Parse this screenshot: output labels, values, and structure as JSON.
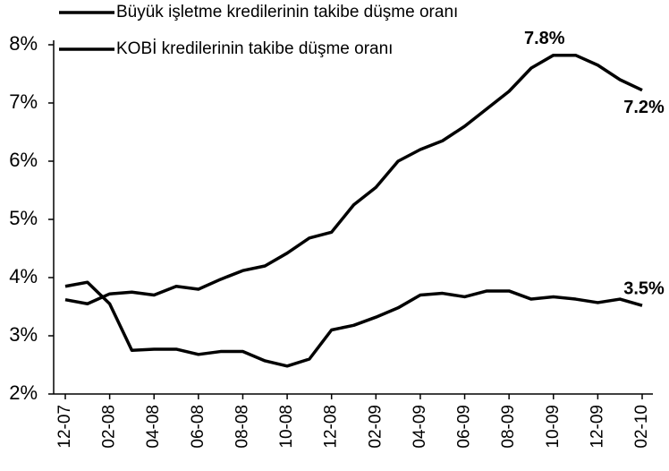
{
  "chart_data": {
    "type": "line",
    "categories": [
      "12-07",
      null,
      "02-08",
      null,
      "04-08",
      null,
      "06-08",
      null,
      "08-08",
      null,
      "10-08",
      null,
      "12-08",
      null,
      "02-09",
      null,
      "04-09",
      null,
      "06-09",
      null,
      "08-09",
      null,
      "10-09",
      null,
      "12-09",
      null,
      "02-10"
    ],
    "series": [
      {
        "name": "Büyük işletme kredilerinin takibe düşme oranı",
        "color": "#000000",
        "values": [
          3.85,
          3.92,
          3.55,
          2.75,
          2.77,
          2.77,
          2.68,
          2.73,
          2.73,
          2.57,
          2.48,
          2.6,
          3.1,
          3.18,
          3.32,
          3.48,
          3.7,
          3.73,
          3.67,
          3.77,
          3.77,
          3.63,
          3.67,
          3.63,
          3.57,
          3.63,
          3.52
        ],
        "value_labels": [
          null,
          null,
          null,
          null,
          null,
          null,
          null,
          null,
          null,
          null,
          null,
          null,
          null,
          null,
          null,
          null,
          null,
          null,
          null,
          null,
          null,
          null,
          null,
          null,
          null,
          null,
          "3.5%"
        ]
      },
      {
        "name": "KOBİ kredilerinin takibe düşme oranı",
        "color": "#000000",
        "values": [
          3.62,
          3.55,
          3.72,
          3.75,
          3.7,
          3.85,
          3.8,
          3.97,
          4.12,
          4.2,
          4.42,
          4.68,
          4.78,
          5.25,
          5.55,
          6.0,
          6.2,
          6.35,
          6.6,
          6.9,
          7.2,
          7.6,
          7.82,
          7.82,
          7.65,
          7.4,
          7.22
        ],
        "value_labels": [
          null,
          null,
          null,
          null,
          null,
          null,
          null,
          null,
          null,
          null,
          null,
          null,
          null,
          null,
          null,
          null,
          null,
          null,
          null,
          null,
          null,
          null,
          "7.8%",
          null,
          null,
          null,
          "7.2%"
        ]
      }
    ],
    "ylim": [
      2,
      8
    ],
    "yticks": [
      {
        "value": 2,
        "label": "2%"
      },
      {
        "value": 3,
        "label": "3%"
      },
      {
        "value": 4,
        "label": "4%"
      },
      {
        "value": 5,
        "label": "5%"
      },
      {
        "value": 6,
        "label": "6%"
      },
      {
        "value": 7,
        "label": "7%"
      },
      {
        "value": 8,
        "label": "8%"
      }
    ]
  }
}
